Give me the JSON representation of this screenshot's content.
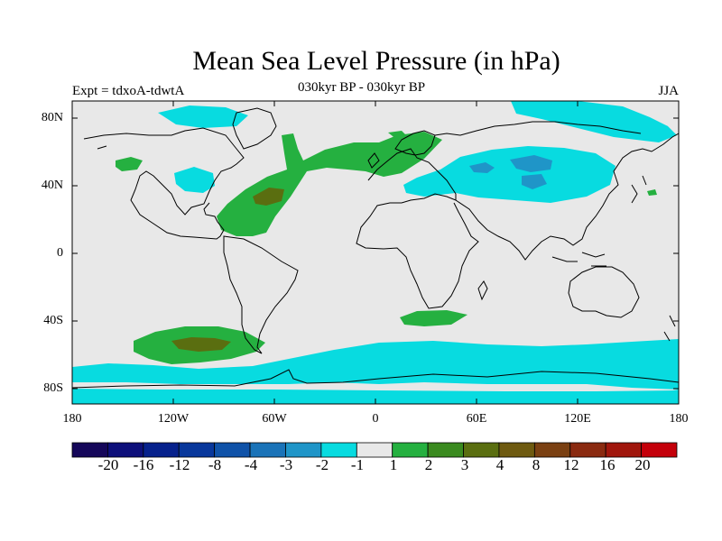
{
  "title": "Mean Sea Level Pressure (in hPa)",
  "subtitle_left": "Expt = tdxoA-tdwtA",
  "subtitle_center": "030kyr BP - 030kyr BP",
  "subtitle_right": "JJA",
  "lat_ticks": [
    "80N",
    "40N",
    "0",
    "40S",
    "80S"
  ],
  "lon_ticks": [
    "180",
    "120W",
    "60W",
    "0",
    "60E",
    "120E",
    "180"
  ],
  "colorbar": {
    "colors": [
      "#15075a",
      "#0d0f7a",
      "#06218c",
      "#08379b",
      "#0f52a8",
      "#1a73b8",
      "#1f95c8",
      "#08dbe0",
      "#e8e8e8",
      "#25b040",
      "#3a8a1f",
      "#5a6e10",
      "#6e5a10",
      "#7a4012",
      "#8a2a10",
      "#a0160c",
      "#c4000a"
    ],
    "labels": [
      "-20",
      "-16",
      "-12",
      "-8",
      "-4",
      "-3",
      "-2",
      "-1",
      "1",
      "2",
      "3",
      "4",
      "8",
      "12",
      "16",
      "20"
    ]
  },
  "map_colors": {
    "ocean_background": "#e8e8e8",
    "negative_1": "#08dbe0",
    "negative_2": "#1f95c8",
    "positive_1": "#25b040",
    "positive_2": "#5a6e10",
    "coastline": "#000000"
  }
}
